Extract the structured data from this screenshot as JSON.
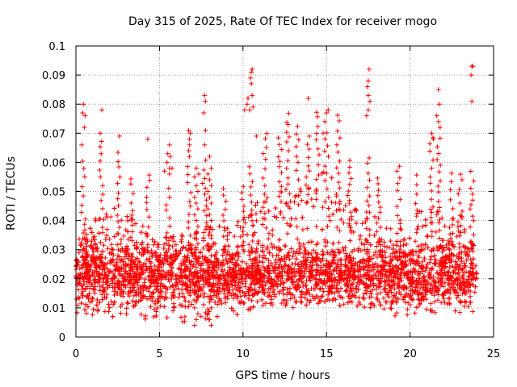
{
  "chart_data": {
    "type": "scatter",
    "title": "Day 315 of 2025, Rate Of TEC Index for receiver mogo",
    "xlabel": "GPS time / hours",
    "ylabel": "ROTI / TECUs",
    "xlim": [
      0,
      25
    ],
    "ylim": [
      0,
      0.1
    ],
    "xticks": [
      0,
      5,
      10,
      15,
      20,
      25
    ],
    "xtick_labels": [
      "0",
      "5",
      "10",
      "15",
      "20",
      "25"
    ],
    "yticks": [
      0,
      0.01,
      0.02,
      0.03,
      0.04,
      0.05,
      0.06,
      0.07,
      0.08,
      0.09,
      0.1
    ],
    "ytick_labels": [
      "0",
      "0.01",
      "0.02",
      "0.03",
      "0.04",
      "0.05",
      "0.06",
      "0.07",
      "0.08",
      "0.09",
      "0.1"
    ],
    "grid": true,
    "marker": "+",
    "color": "#ff0000",
    "data_x_range": [
      0,
      24
    ],
    "typical_band": [
      0.01,
      0.03
    ],
    "envelope": [
      {
        "x": 0,
        "lower": 0.008,
        "upper": 0.035
      },
      {
        "x": 2,
        "lower": 0.007,
        "upper": 0.045
      },
      {
        "x": 4,
        "lower": 0.006,
        "upper": 0.04
      },
      {
        "x": 6,
        "lower": 0.005,
        "upper": 0.035
      },
      {
        "x": 8,
        "lower": 0.006,
        "upper": 0.038
      },
      {
        "x": 10,
        "lower": 0.007,
        "upper": 0.04
      },
      {
        "x": 11,
        "lower": 0.01,
        "upper": 0.05
      },
      {
        "x": 13,
        "lower": 0.01,
        "upper": 0.055
      },
      {
        "x": 15,
        "lower": 0.012,
        "upper": 0.058
      },
      {
        "x": 17,
        "lower": 0.009,
        "upper": 0.045
      },
      {
        "x": 19,
        "lower": 0.007,
        "upper": 0.038
      },
      {
        "x": 21,
        "lower": 0.008,
        "upper": 0.045
      },
      {
        "x": 23,
        "lower": 0.008,
        "upper": 0.042
      },
      {
        "x": 24,
        "lower": 0.009,
        "upper": 0.04
      }
    ],
    "notable_points": [
      {
        "x": 0.45,
        "y": 0.08
      },
      {
        "x": 0.4,
        "y": 0.077
      },
      {
        "x": 0.55,
        "y": 0.076
      },
      {
        "x": 0.5,
        "y": 0.072
      },
      {
        "x": 0.35,
        "y": 0.066
      },
      {
        "x": 1.55,
        "y": 0.078
      },
      {
        "x": 1.45,
        "y": 0.07
      },
      {
        "x": 2.6,
        "y": 0.069
      },
      {
        "x": 4.3,
        "y": 0.068
      },
      {
        "x": 5.6,
        "y": 0.066
      },
      {
        "x": 5.65,
        "y": 0.062
      },
      {
        "x": 5.5,
        "y": 0.063
      },
      {
        "x": 5.3,
        "y": 0.057
      },
      {
        "x": 5.45,
        "y": 0.06
      },
      {
        "x": 5.6,
        "y": 0.058
      },
      {
        "x": 5.6,
        "y": 0.056
      },
      {
        "x": 5.75,
        "y": 0.058
      },
      {
        "x": 6.75,
        "y": 0.071
      },
      {
        "x": 6.85,
        "y": 0.07
      },
      {
        "x": 6.8,
        "y": 0.068
      },
      {
        "x": 6.8,
        "y": 0.066
      },
      {
        "x": 6.75,
        "y": 0.064
      },
      {
        "x": 6.8,
        "y": 0.062
      },
      {
        "x": 7.2,
        "y": 0.058
      },
      {
        "x": 7.35,
        "y": 0.056
      },
      {
        "x": 7.1,
        "y": 0.055
      },
      {
        "x": 7.2,
        "y": 0.052
      },
      {
        "x": 7.3,
        "y": 0.05
      },
      {
        "x": 7.1,
        "y": 0.048
      },
      {
        "x": 7.2,
        "y": 0.046
      },
      {
        "x": 7.3,
        "y": 0.044
      },
      {
        "x": 7.1,
        "y": 0.042
      },
      {
        "x": 7.2,
        "y": 0.04
      },
      {
        "x": 7.3,
        "y": 0.038
      },
      {
        "x": 7.2,
        "y": 0.036
      },
      {
        "x": 7.1,
        "y": 0.034
      },
      {
        "x": 7.3,
        "y": 0.032
      },
      {
        "x": 7.2,
        "y": 0.03
      },
      {
        "x": 7.1,
        "y": 0.028
      },
      {
        "x": 7.3,
        "y": 0.026
      },
      {
        "x": 7.2,
        "y": 0.024
      },
      {
        "x": 7.1,
        "y": 0.022
      },
      {
        "x": 7.3,
        "y": 0.02
      },
      {
        "x": 7.2,
        "y": 0.018
      },
      {
        "x": 7.1,
        "y": 0.016
      },
      {
        "x": 7.3,
        "y": 0.014
      },
      {
        "x": 7.2,
        "y": 0.012
      },
      {
        "x": 7.1,
        "y": 0.01
      },
      {
        "x": 7.3,
        "y": 0.008
      },
      {
        "x": 7.2,
        "y": 0.006
      },
      {
        "x": 7.1,
        "y": 0.004
      },
      {
        "x": 7.7,
        "y": 0.083
      },
      {
        "x": 7.75,
        "y": 0.081
      },
      {
        "x": 7.65,
        "y": 0.077
      },
      {
        "x": 7.75,
        "y": 0.071
      },
      {
        "x": 7.7,
        "y": 0.066
      },
      {
        "x": 8.0,
        "y": 0.062
      },
      {
        "x": 8.1,
        "y": 0.058
      },
      {
        "x": 7.9,
        "y": 0.056
      },
      {
        "x": 8.0,
        "y": 0.054
      },
      {
        "x": 8.1,
        "y": 0.052
      },
      {
        "x": 7.9,
        "y": 0.05
      },
      {
        "x": 8.0,
        "y": 0.048
      },
      {
        "x": 8.1,
        "y": 0.046
      },
      {
        "x": 7.9,
        "y": 0.044
      },
      {
        "x": 8.0,
        "y": 0.042
      },
      {
        "x": 8.1,
        "y": 0.04
      },
      {
        "x": 7.9,
        "y": 0.038
      },
      {
        "x": 8.0,
        "y": 0.036
      },
      {
        "x": 8.1,
        "y": 0.034
      },
      {
        "x": 7.9,
        "y": 0.032
      },
      {
        "x": 8.0,
        "y": 0.03
      },
      {
        "x": 8.1,
        "y": 0.028
      },
      {
        "x": 7.9,
        "y": 0.026
      },
      {
        "x": 8.0,
        "y": 0.024
      },
      {
        "x": 8.1,
        "y": 0.022
      },
      {
        "x": 7.9,
        "y": 0.02
      },
      {
        "x": 8.0,
        "y": 0.018
      },
      {
        "x": 8.1,
        "y": 0.016
      },
      {
        "x": 7.9,
        "y": 0.014
      },
      {
        "x": 8.0,
        "y": 0.012
      },
      {
        "x": 8.1,
        "y": 0.01
      },
      {
        "x": 7.9,
        "y": 0.008
      },
      {
        "x": 8.0,
        "y": 0.006
      },
      {
        "x": 8.1,
        "y": 0.004
      },
      {
        "x": 10.5,
        "y": 0.091
      },
      {
        "x": 10.55,
        "y": 0.092
      },
      {
        "x": 10.45,
        "y": 0.089
      },
      {
        "x": 10.5,
        "y": 0.087
      },
      {
        "x": 10.1,
        "y": 0.078
      },
      {
        "x": 10.25,
        "y": 0.08
      },
      {
        "x": 10.3,
        "y": 0.082
      },
      {
        "x": 10.4,
        "y": 0.078
      },
      {
        "x": 10.6,
        "y": 0.079
      },
      {
        "x": 10.55,
        "y": 0.083
      },
      {
        "x": 10.8,
        "y": 0.069
      },
      {
        "x": 13.9,
        "y": 0.082
      },
      {
        "x": 12.7,
        "y": 0.073
      },
      {
        "x": 15.0,
        "y": 0.077
      },
      {
        "x": 15.1,
        "y": 0.078
      },
      {
        "x": 14.9,
        "y": 0.074
      },
      {
        "x": 14.8,
        "y": 0.07
      },
      {
        "x": 17.55,
        "y": 0.092
      },
      {
        "x": 17.5,
        "y": 0.088
      },
      {
        "x": 17.45,
        "y": 0.086
      },
      {
        "x": 17.5,
        "y": 0.083
      },
      {
        "x": 17.6,
        "y": 0.081
      },
      {
        "x": 17.5,
        "y": 0.078
      },
      {
        "x": 17.4,
        "y": 0.076
      },
      {
        "x": 21.7,
        "y": 0.085
      },
      {
        "x": 21.75,
        "y": 0.08
      },
      {
        "x": 21.6,
        "y": 0.076
      },
      {
        "x": 21.7,
        "y": 0.074
      },
      {
        "x": 21.8,
        "y": 0.072
      },
      {
        "x": 21.3,
        "y": 0.07
      },
      {
        "x": 21.4,
        "y": 0.068
      },
      {
        "x": 23.7,
        "y": 0.093
      },
      {
        "x": 23.75,
        "y": 0.093
      },
      {
        "x": 23.65,
        "y": 0.09
      },
      {
        "x": 23.7,
        "y": 0.081
      }
    ]
  }
}
